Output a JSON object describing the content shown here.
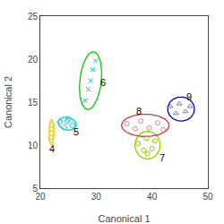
{
  "chart_data": {
    "type": "scatter",
    "xlabel": "Canonical 1",
    "ylabel": "Canonical 2",
    "xlim": [
      20,
      50
    ],
    "ylim": [
      5,
      25
    ],
    "xticks": [
      20,
      30,
      40,
      50
    ],
    "yticks": [
      5,
      10,
      15,
      20,
      25
    ],
    "grid": false,
    "series": [
      {
        "color": "#e8d800",
        "marker": "circle-open",
        "x": [
          21.9,
          22.0,
          22.1,
          22.0,
          21.95
        ],
        "y": [
          10.6,
          11.4,
          12.3,
          11.9,
          10.9
        ],
        "ellipse": {
          "center": [
            22.0,
            11.5
          ],
          "width": 0.9,
          "height": 3.0,
          "angle": 0,
          "color": "#e8d800"
        }
      },
      {
        "color": "#00cccc",
        "marker": "diamond-open",
        "x": [
          23.5,
          24.3,
          25.0,
          25.7,
          24.8
        ],
        "y": [
          12.7,
          12.1,
          13.0,
          12.3,
          12.8
        ],
        "ellipse": {
          "center": [
            24.8,
            12.5
          ],
          "width": 3.2,
          "height": 1.5,
          "angle": -5,
          "color": "#00cccc"
        }
      },
      {
        "color": "#00cccc",
        "marker": "x-thin",
        "x": [
          28.0,
          28.6,
          29.0,
          29.4,
          29.9
        ],
        "y": [
          15.2,
          16.5,
          17.5,
          18.8,
          19.8
        ],
        "ellipse": {
          "center": [
            29.0,
            17.5
          ],
          "width": 3.8,
          "height": 6.8,
          "angle": -12,
          "color": "#00cc00"
        }
      },
      {
        "color": "#99cc00",
        "marker": "circle-open",
        "x": [
          37.5,
          38.5,
          39.0,
          40.0,
          40.5,
          39.2
        ],
        "y": [
          10.2,
          9.4,
          10.8,
          9.6,
          10.5,
          9.0
        ],
        "ellipse": {
          "center": [
            39.2,
            10.0
          ],
          "width": 4.5,
          "height": 3.2,
          "angle": 0,
          "color": "#99cc00"
        }
      },
      {
        "color": "#dd8888",
        "marker": "circle-open",
        "x": [
          35.5,
          37.0,
          38.0,
          39.5,
          41.0,
          42.0
        ],
        "y": [
          12.5,
          11.9,
          12.8,
          12.0,
          12.6,
          11.8
        ],
        "ellipse": {
          "center": [
            38.8,
            12.3
          ],
          "width": 8.5,
          "height": 2.6,
          "angle": 0,
          "color": "#cc3355"
        }
      },
      {
        "color": "#7777cc",
        "marker": "triangle-up-open",
        "x": [
          43.3,
          44.3,
          44.9,
          46.0,
          46.8
        ],
        "y": [
          14.5,
          13.7,
          14.8,
          13.9,
          14.5
        ],
        "ellipse": {
          "center": [
            45.2,
            14.2
          ],
          "width": 4.8,
          "height": 2.8,
          "angle": 0,
          "color": "#0000bb"
        }
      }
    ],
    "annotations": [
      {
        "text": "4",
        "x": 21.3,
        "y": 9.6
      },
      {
        "text": "5",
        "x": 25.6,
        "y": 11.6
      },
      {
        "text": "6",
        "x": 30.5,
        "y": 17.3
      },
      {
        "text": "7",
        "x": 41.0,
        "y": 8.5
      },
      {
        "text": "8",
        "x": 36.8,
        "y": 14.0
      },
      {
        "text": "9",
        "x": 45.8,
        "y": 15.6
      }
    ]
  }
}
